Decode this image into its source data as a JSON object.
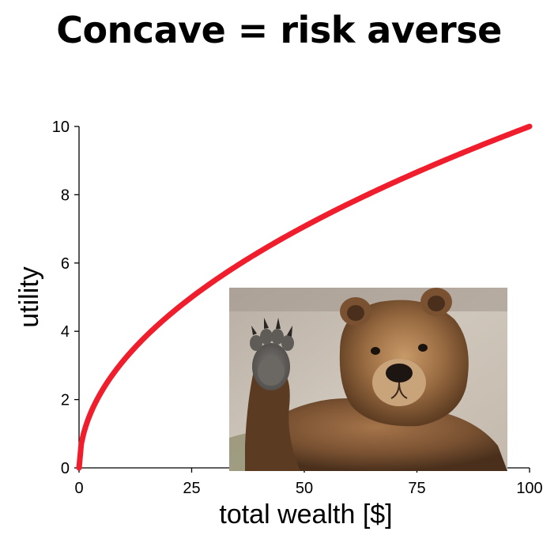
{
  "slide": {
    "title": "Concave = risk averse"
  },
  "colors": {
    "curve": "#f01e2c",
    "axis": "#000000",
    "background": "#ffffff"
  },
  "chart_data": {
    "type": "line",
    "title": "",
    "xlabel": "total wealth [$]",
    "ylabel": "utility",
    "xlim": [
      0,
      100
    ],
    "ylim": [
      0,
      10
    ],
    "x_ticks": [
      0,
      25,
      50,
      75,
      100
    ],
    "y_ticks": [
      0,
      2,
      4,
      6,
      8,
      10
    ],
    "grid": false,
    "legend": "none",
    "series": [
      {
        "x": [
          0,
          1,
          4,
          9,
          16,
          25,
          36,
          49,
          64,
          81,
          100
        ],
        "y": [
          0,
          1,
          2,
          3,
          4,
          5,
          6,
          7,
          8,
          9,
          10
        ]
      }
    ]
  },
  "image": {
    "icon": "bear-waving-photo"
  }
}
